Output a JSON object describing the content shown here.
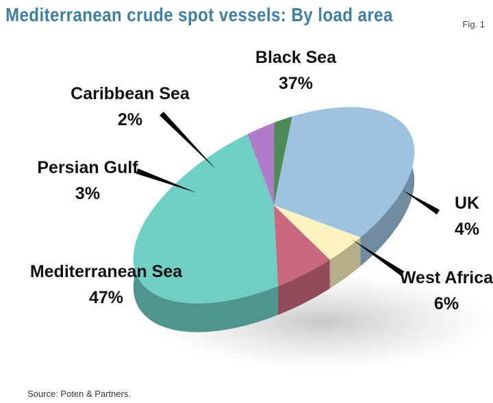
{
  "title": "Mediterranean crude spot vessels: By load area",
  "figure_label": "Fig. 1",
  "source": "Source: Poten & Partners.",
  "chart_data": {
    "type": "pie",
    "title": "Mediterranean crude spot vessels: By load area",
    "unit": "%",
    "slices": [
      {
        "label": "Black Sea",
        "value": 37,
        "display": "37%",
        "color": "#9dc3e0"
      },
      {
        "label": "UK",
        "value": 4,
        "display": "4%",
        "color": "#fdf3c0"
      },
      {
        "label": "West Africa",
        "value": 6,
        "display": "6%",
        "color": "#c9687e"
      },
      {
        "label": "Mediterranean Sea",
        "value": 47,
        "display": "47%",
        "color": "#6fcfc4"
      },
      {
        "label": "Persian Gulf",
        "value": 3,
        "display": "3%",
        "color": "#b07cc8"
      },
      {
        "label": "Caribbean Sea",
        "value": 2,
        "display": "2%",
        "color": "#4d8a55"
      }
    ]
  }
}
